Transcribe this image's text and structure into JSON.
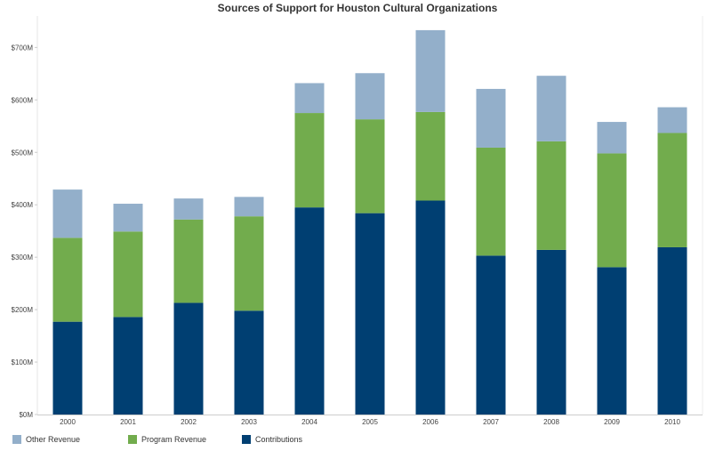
{
  "title": "Sources of Support for Houston Cultural Organizations",
  "chart_data": {
    "type": "bar",
    "stacked": true,
    "title": "Sources of Support for Houston Cultural Organizations",
    "categories": [
      "2000",
      "2001",
      "2002",
      "2003",
      "2004",
      "2005",
      "2006",
      "2007",
      "2008",
      "2009",
      "2010"
    ],
    "series": [
      {
        "name": "Contributions",
        "color": "#003f72",
        "values": [
          177,
          186,
          213,
          198,
          395,
          384,
          408,
          303,
          314,
          281,
          319
        ]
      },
      {
        "name": "Program Revenue",
        "color": "#72ac4d",
        "values": [
          160,
          163,
          159,
          180,
          180,
          179,
          169,
          206,
          207,
          217,
          218
        ]
      },
      {
        "name": "Other Revenue",
        "color": "#93afca",
        "values": [
          92,
          53,
          40,
          37,
          57,
          88,
          156,
          112,
          125,
          60,
          49
        ]
      }
    ],
    "yticks": [
      "$0M",
      "$100M",
      "$200M",
      "$300M",
      "$400M",
      "$500M",
      "$600M",
      "$700M"
    ],
    "ylim": [
      0,
      760
    ],
    "xlabel": "",
    "ylabel": "",
    "grid": false,
    "legend_position": "bottom-left"
  },
  "legend": [
    {
      "label": "Other Revenue",
      "color": "#93afca"
    },
    {
      "label": "Program Revenue",
      "color": "#72ac4d"
    },
    {
      "label": "Contributions",
      "color": "#003f72"
    }
  ]
}
